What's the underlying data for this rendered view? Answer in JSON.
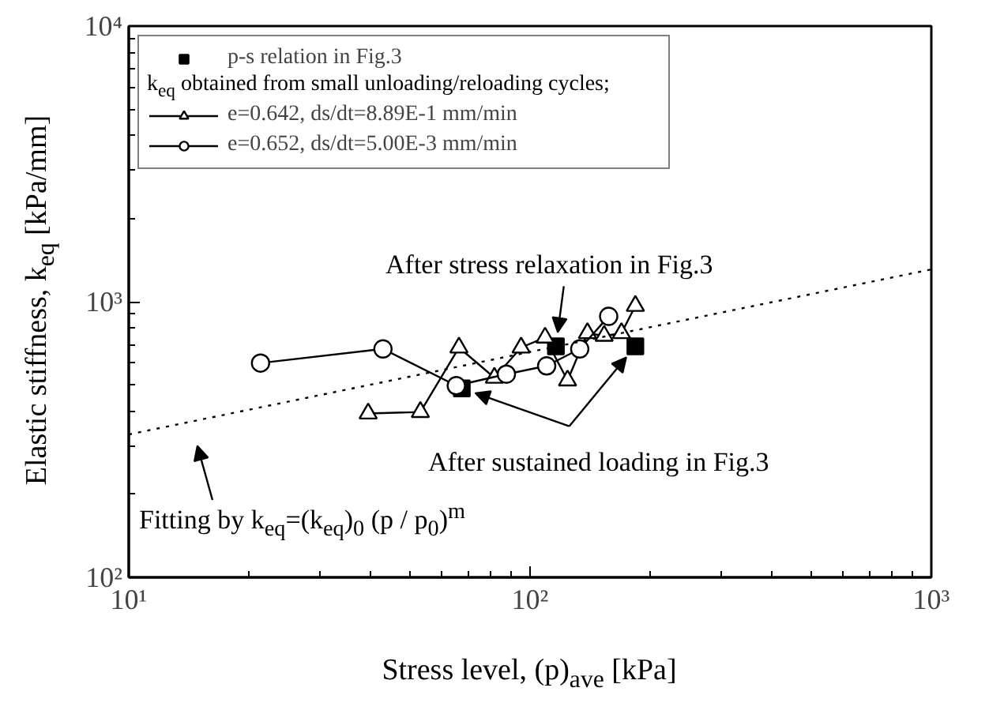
{
  "chart_data": {
    "type": "line",
    "xlabel": "Stress level, (p)$_{ave}$ [kPa]",
    "ylabel": "Elastic stiffness, k$_{eq}$ [kPa/mm]",
    "legend_title": "k$_{eq}$ obtained from small unloading/reloading cycles;",
    "log": "xy",
    "grid": false,
    "legend": "top left",
    "xlim": [
      10,
      1000
    ],
    "ylim": [
      100,
      10000
    ],
    "xticks": [
      {
        "value": 10,
        "label": "10¹"
      },
      {
        "value": 100,
        "label": "10²"
      },
      {
        "value": 1000,
        "label": "10³"
      }
    ],
    "yticks": [
      {
        "value": 100,
        "label": "10²"
      },
      {
        "value": 1000,
        "label": "10³"
      },
      {
        "value": 10000,
        "label": "10⁴"
      }
    ],
    "series": [
      {
        "name": "p-s relation in Fig.3",
        "type": "scatter",
        "marker": "square",
        "color": "#000000",
        "x": [
          67.6,
          116,
          183
        ],
        "values": [
          485,
          689,
          689
        ]
      },
      {
        "name": "e=0.642, ds/dt=8.89E-1 mm/min",
        "type": "line",
        "marker": "triangle",
        "line_style": "solid",
        "color": "#000000",
        "x": [
          39.5,
          53.3,
          66.5,
          81.5,
          95,
          109,
          124,
          139,
          153,
          169,
          183
        ],
        "values": [
          393,
          398,
          682,
          530,
          682,
          741,
          518,
          769,
          752,
          769,
          966
        ]
      },
      {
        "name": "e=0.652, ds/dt=5.00E-3 mm/min",
        "type": "line",
        "marker": "circle",
        "line_style": "solid",
        "color": "#000000",
        "x": [
          21.3,
          43,
          65.5,
          87.3,
          110,
          133,
          157
        ],
        "values": [
          599,
          674,
          496,
          546,
          585,
          674,
          885
        ]
      },
      {
        "type": "line",
        "marker": "none",
        "line_style": "dotted",
        "color": "#000000",
        "x": [
          10,
          1000
        ],
        "values": [
          330,
          1310
        ]
      }
    ],
    "annotations": [
      {
        "text": "After stress relaxation in Fig.3",
        "x": 116,
        "y": 689
      },
      {
        "text": "After sustained loading in Fig.3",
        "x": 67.6,
        "y": 485
      },
      "Fitting by k$_{eq}$=(k$_{eq}$)$_{0}$ (p / p$_{0}$)$^{m}$"
    ]
  }
}
